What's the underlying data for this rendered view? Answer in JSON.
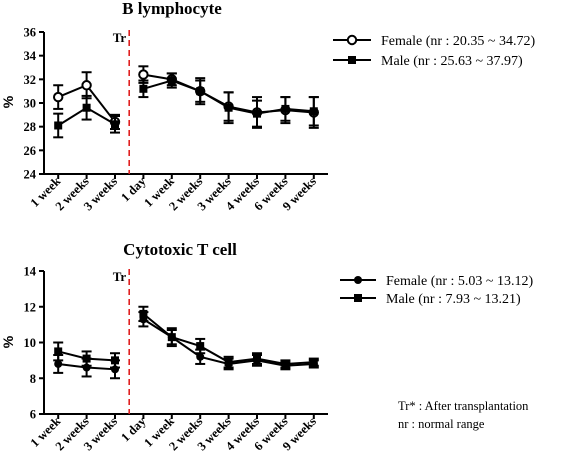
{
  "chart_data": [
    {
      "type": "line",
      "title": "B lymphocyte",
      "ylabel": "%",
      "ylim": [
        24,
        36
      ],
      "yticks": [
        "24",
        "26",
        "28",
        "30",
        "32",
        "34",
        "36"
      ],
      "categories": [
        "1 week",
        "2 weeks",
        "3 weeks",
        "1 day",
        "1 week",
        "2 weeks",
        "3 weeks",
        "4 weeks",
        "6 weeks",
        "9 weeks"
      ],
      "marker_label": "Tr",
      "marker_after_index": 2,
      "legend_position": "right",
      "series": [
        {
          "name": "Female (nr : 20.35 ~ 34.72)",
          "marker": "open-circle",
          "values": [
            30.5,
            31.5,
            28.4,
            32.4,
            32.0,
            31.0,
            29.7,
            29.2,
            29.4,
            29.2
          ],
          "errors": [
            1.0,
            1.1,
            0.6,
            0.7,
            0.5,
            1.1,
            1.2,
            1.3,
            1.1,
            1.3
          ]
        },
        {
          "name": "Male (nr : 25.63 ~ 37.97)",
          "marker": "filled-square",
          "values": [
            28.1,
            29.6,
            28.2,
            31.2,
            31.9,
            31.0,
            29.6,
            29.1,
            29.5,
            29.3
          ],
          "errors": [
            1.0,
            1.0,
            0.7,
            0.7,
            0.6,
            0.9,
            1.3,
            1.1,
            1.0,
            1.2
          ]
        }
      ]
    },
    {
      "type": "line",
      "title": "Cytotoxic T cell",
      "ylabel": "%",
      "ylim": [
        6,
        14
      ],
      "yticks": [
        "6",
        "8",
        "10",
        "12",
        "14"
      ],
      "categories": [
        "1 week",
        "2 weeks",
        "3 weeks",
        "1 day",
        "1 week",
        "2 weeks",
        "3 weeks",
        "4 weeks",
        "6 weeks",
        "9 weeks"
      ],
      "marker_label": "Tr",
      "marker_after_index": 2,
      "legend_position": "right",
      "series": [
        {
          "name": "Female (nr : 5.03 ~ 13.12)",
          "marker": "filled-circle",
          "values": [
            8.8,
            8.6,
            8.5,
            11.3,
            10.3,
            9.2,
            8.8,
            9.0,
            8.7,
            8.8
          ],
          "errors": [
            0.5,
            0.5,
            0.5,
            0.4,
            0.4,
            0.4,
            0.3,
            0.3,
            0.2,
            0.2
          ]
        },
        {
          "name": "Male (nr : 7.93 ~ 13.21)",
          "marker": "filled-square",
          "values": [
            9.5,
            9.1,
            9.0,
            11.6,
            10.3,
            9.8,
            8.9,
            9.1,
            8.8,
            8.9
          ],
          "errors": [
            0.5,
            0.4,
            0.4,
            0.4,
            0.5,
            0.4,
            0.3,
            0.3,
            0.2,
            0.2
          ]
        }
      ]
    }
  ],
  "footnote": {
    "line1": "Tr* : After transplantation",
    "line2": "nr : normal range"
  }
}
